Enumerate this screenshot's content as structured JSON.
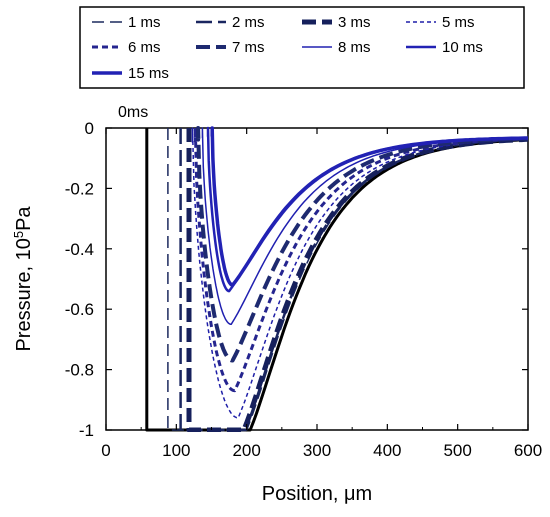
{
  "chart_data": {
    "type": "line",
    "xlabel_prefix": "Position, ",
    "xlabel_unit": "μm",
    "ylabel_prefix": "Pressure, 10",
    "ylabel_sup": "5",
    "ylabel_suffix": "Pa",
    "xlim": [
      0,
      600
    ],
    "ylim": [
      -1,
      0
    ],
    "x_ticks": [
      0,
      100,
      200,
      300,
      400,
      500,
      600
    ],
    "x_tick_labels": [
      "0",
      "100",
      "200",
      "300",
      "400",
      "500",
      "600"
    ],
    "y_ticks": [
      0,
      -0.2,
      -0.4,
      -0.6,
      -0.8,
      -1
    ],
    "y_tick_labels": [
      "0",
      "-0.2",
      "-0.4",
      "-0.6",
      "-0.8",
      "-1"
    ],
    "annotation": "0ms",
    "grid": false,
    "legend_position": "top",
    "series": [
      {
        "name": "0ms",
        "color": "#000000",
        "width": 3,
        "dash": "",
        "front": 58,
        "x_min": 205,
        "y_min": -1.0
      },
      {
        "name": "1 ms",
        "color": "#1c2a5e",
        "width": 1.5,
        "dash": "12 6",
        "front": 88,
        "x_min": 200,
        "y_min": -1.0
      },
      {
        "name": "2 ms",
        "color": "#1a2660",
        "width": 2.5,
        "dash": "16 6",
        "front": 106,
        "x_min": 198,
        "y_min": -1.0
      },
      {
        "name": "3 ms",
        "color": "#16205c",
        "width": 5,
        "dash": "14 6",
        "front": 118,
        "x_min": 196,
        "y_min": -1.0
      },
      {
        "name": "5 ms",
        "color": "#1f1fa8",
        "width": 1.5,
        "dash": "4 3",
        "front": 123,
        "x_min": 188,
        "y_min": -0.96
      },
      {
        "name": "6 ms",
        "color": "#25258f",
        "width": 3,
        "dash": "6 4",
        "front": 127,
        "x_min": 183,
        "y_min": -0.87
      },
      {
        "name": "7 ms",
        "color": "#1e2a70",
        "width": 4,
        "dash": "14 6",
        "front": 131,
        "x_min": 180,
        "y_min": -0.77
      },
      {
        "name": "8 ms",
        "color": "#2020b0",
        "width": 1.5,
        "dash": "",
        "front": 137,
        "x_min": 178,
        "y_min": -0.65
      },
      {
        "name": "10 ms",
        "color": "#2222b4",
        "width": 2.5,
        "dash": "",
        "front": 145,
        "x_min": 175,
        "y_min": -0.54
      },
      {
        "name": "15 ms",
        "color": "#2222b4",
        "width": 3.5,
        "dash": "",
        "front": 151,
        "x_min": 180,
        "y_min": -0.52
      }
    ]
  }
}
